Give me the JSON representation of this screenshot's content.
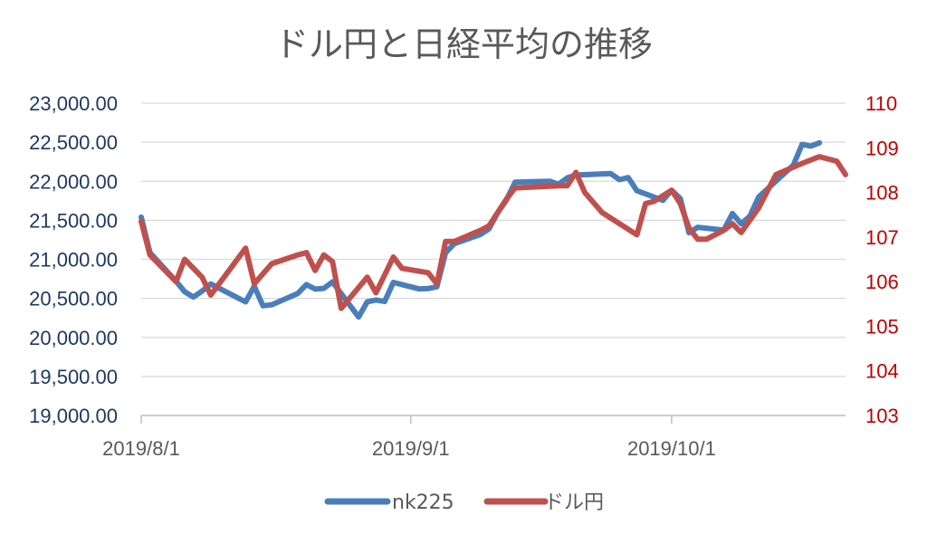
{
  "chart_data": {
    "type": "line",
    "title": "ドル円と日経平均の推移",
    "x_ticks": [
      "2019/8/1",
      "2019/9/1",
      "2019/10/1"
    ],
    "x_range": [
      "2019-08-01",
      "2019-10-21"
    ],
    "y_left": {
      "ticks": [
        "19,000.00",
        "19,500.00",
        "20,000.00",
        "20,500.00",
        "21,000.00",
        "21,500.00",
        "22,000.00",
        "22,500.00",
        "23,000.00"
      ],
      "ylim": [
        19000,
        23000
      ],
      "color": "#1f3864"
    },
    "y_right": {
      "ticks": [
        "103",
        "104",
        "105",
        "106",
        "107",
        "108",
        "109",
        "110"
      ],
      "ylim": [
        103,
        110
      ],
      "color": "#c00000"
    },
    "grid": true,
    "legend_position": "bottom",
    "series": [
      {
        "name": "nk225",
        "axis": "left",
        "color": "#4a7ebb",
        "points": [
          [
            "2019-08-01",
            21540
          ],
          [
            "2019-08-02",
            21087
          ],
          [
            "2019-08-05",
            20720
          ],
          [
            "2019-08-06",
            20585
          ],
          [
            "2019-08-07",
            20516
          ],
          [
            "2019-08-08",
            20593
          ],
          [
            "2019-08-09",
            20685
          ],
          [
            "2019-08-13",
            20455
          ],
          [
            "2019-08-14",
            20655
          ],
          [
            "2019-08-15",
            20405
          ],
          [
            "2019-08-16",
            20418
          ],
          [
            "2019-08-19",
            20563
          ],
          [
            "2019-08-20",
            20677
          ],
          [
            "2019-08-21",
            20618
          ],
          [
            "2019-08-22",
            20628
          ],
          [
            "2019-08-23",
            20711
          ],
          [
            "2019-08-26",
            20261
          ],
          [
            "2019-08-27",
            20456
          ],
          [
            "2019-08-28",
            20479
          ],
          [
            "2019-08-29",
            20460
          ],
          [
            "2019-08-30",
            20704
          ],
          [
            "2019-09-02",
            20620
          ],
          [
            "2019-09-03",
            20625
          ],
          [
            "2019-09-04",
            20649
          ],
          [
            "2019-09-05",
            21086
          ],
          [
            "2019-09-06",
            21199
          ],
          [
            "2019-09-09",
            21318
          ],
          [
            "2019-09-10",
            21392
          ],
          [
            "2019-09-11",
            21597
          ],
          [
            "2019-09-12",
            21759
          ],
          [
            "2019-09-13",
            21988
          ],
          [
            "2019-09-17",
            22001
          ],
          [
            "2019-09-18",
            21960
          ],
          [
            "2019-09-19",
            22044
          ],
          [
            "2019-09-20",
            22079
          ],
          [
            "2019-09-24",
            22098
          ],
          [
            "2019-09-25",
            22020
          ],
          [
            "2019-09-26",
            22048
          ],
          [
            "2019-09-27",
            21879
          ],
          [
            "2019-09-30",
            21756
          ],
          [
            "2019-10-01",
            21885
          ],
          [
            "2019-10-02",
            21778
          ],
          [
            "2019-10-03",
            21341
          ],
          [
            "2019-10-04",
            21410
          ],
          [
            "2019-10-07",
            21375
          ],
          [
            "2019-10-08",
            21587
          ],
          [
            "2019-10-09",
            21456
          ],
          [
            "2019-10-10",
            21552
          ],
          [
            "2019-10-11",
            21798
          ],
          [
            "2019-10-15",
            22207
          ],
          [
            "2019-10-16",
            22472
          ],
          [
            "2019-10-17",
            22451
          ],
          [
            "2019-10-18",
            22492
          ]
        ]
      },
      {
        "name": "ドル円",
        "axis": "right",
        "color": "#c0504d",
        "points": [
          [
            "2019-08-01",
            107.35
          ],
          [
            "2019-08-02",
            106.6
          ],
          [
            "2019-08-05",
            106.0
          ],
          [
            "2019-08-06",
            106.5
          ],
          [
            "2019-08-07",
            106.3
          ],
          [
            "2019-08-08",
            106.1
          ],
          [
            "2019-08-09",
            105.7
          ],
          [
            "2019-08-13",
            106.75
          ],
          [
            "2019-08-14",
            105.95
          ],
          [
            "2019-08-16",
            106.4
          ],
          [
            "2019-08-19",
            106.6
          ],
          [
            "2019-08-20",
            106.65
          ],
          [
            "2019-08-21",
            106.25
          ],
          [
            "2019-08-22",
            106.6
          ],
          [
            "2019-08-23",
            106.45
          ],
          [
            "2019-08-24",
            105.4
          ],
          [
            "2019-08-27",
            106.1
          ],
          [
            "2019-08-28",
            105.75
          ],
          [
            "2019-08-30",
            106.55
          ],
          [
            "2019-08-31",
            106.3
          ],
          [
            "2019-09-03",
            106.2
          ],
          [
            "2019-09-04",
            105.95
          ],
          [
            "2019-09-05",
            106.9
          ],
          [
            "2019-09-06",
            106.9
          ],
          [
            "2019-09-09",
            107.15
          ],
          [
            "2019-09-10",
            107.25
          ],
          [
            "2019-09-12",
            107.85
          ],
          [
            "2019-09-13",
            108.1
          ],
          [
            "2019-09-18",
            108.15
          ],
          [
            "2019-09-19",
            108.15
          ],
          [
            "2019-09-20",
            108.45
          ],
          [
            "2019-09-21",
            108.0
          ],
          [
            "2019-09-23",
            107.55
          ],
          [
            "2019-09-27",
            107.05
          ],
          [
            "2019-09-28",
            107.75
          ],
          [
            "2019-09-29",
            107.8
          ],
          [
            "2019-10-01",
            108.05
          ],
          [
            "2019-10-02",
            107.75
          ],
          [
            "2019-10-03",
            107.2
          ],
          [
            "2019-10-04",
            106.95
          ],
          [
            "2019-10-05",
            106.95
          ],
          [
            "2019-10-07",
            107.15
          ],
          [
            "2019-10-08",
            107.3
          ],
          [
            "2019-10-09",
            107.1
          ],
          [
            "2019-10-11",
            107.65
          ],
          [
            "2019-10-13",
            108.4
          ],
          [
            "2019-10-16",
            108.65
          ],
          [
            "2019-10-18",
            108.8
          ],
          [
            "2019-10-20",
            108.7
          ],
          [
            "2019-10-21",
            108.4
          ]
        ]
      }
    ]
  }
}
